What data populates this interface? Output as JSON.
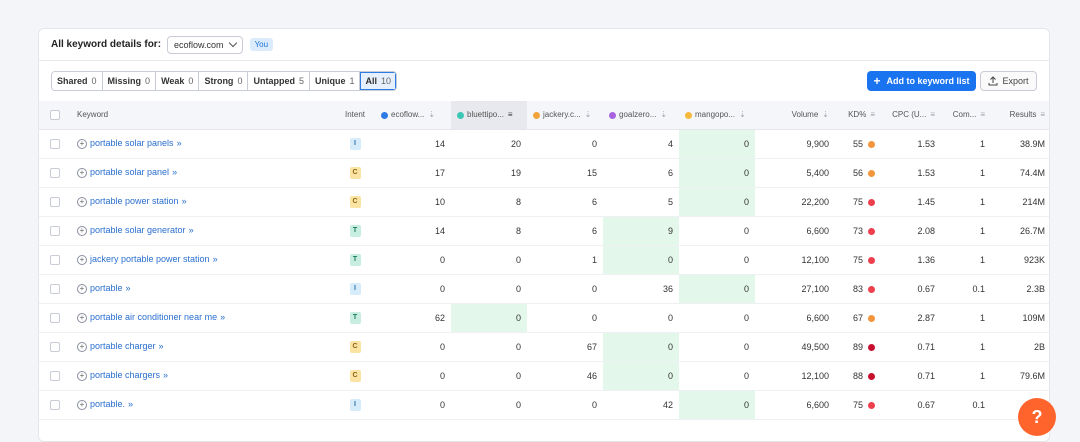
{
  "header": {
    "title": "All keyword details for:",
    "domain": "ecoflow.com",
    "you_badge": "You"
  },
  "filters": [
    {
      "label": "Shared",
      "count": "0"
    },
    {
      "label": "Missing",
      "count": "0"
    },
    {
      "label": "Weak",
      "count": "0"
    },
    {
      "label": "Strong",
      "count": "0"
    },
    {
      "label": "Untapped",
      "count": "5"
    },
    {
      "label": "Unique",
      "count": "1"
    },
    {
      "label": "All",
      "count": "10"
    }
  ],
  "actions": {
    "add_label": "Add to keyword list",
    "export_label": "Export"
  },
  "columns": {
    "keyword": "Keyword",
    "intent": "Intent",
    "c1": "ecoflow...",
    "c2": "bluettipo...",
    "c3": "jackery.c...",
    "c4": "goalzero...",
    "c5": "mangopo...",
    "volume": "Volume",
    "kd": "KD%",
    "cpc": "CPC (U...",
    "com": "Com...",
    "results": "Results"
  },
  "competitor_colors": [
    "#2d7be5",
    "#3cc6b3",
    "#f2a33a",
    "#a863e0",
    "#f6b93b"
  ],
  "intent_colors": {
    "I": {
      "bg": "#d6ecfb",
      "fg": "#2a6fa8"
    },
    "C": {
      "bg": "#fbe3a4",
      "fg": "#8a6410"
    },
    "T": {
      "bg": "#c7eee0",
      "fg": "#1c7a5a"
    }
  },
  "kd_colors": {
    "orange": "#f3953b",
    "red": "#ee3f4d",
    "darkred": "#c8102e"
  },
  "rows": [
    {
      "keyword": "portable solar panels",
      "intent": "I",
      "c1": "14",
      "c2": "20",
      "c3": "0",
      "c4": "4",
      "c5": "0",
      "volume": "9,900",
      "kd": "55",
      "kd_color": "orange",
      "cpc": "1.53",
      "com": "1",
      "results": "38.9M",
      "hl": [
        4
      ]
    },
    {
      "keyword": "portable solar panel",
      "intent": "C",
      "c1": "17",
      "c2": "19",
      "c3": "15",
      "c4": "6",
      "c5": "0",
      "volume": "5,400",
      "kd": "56",
      "kd_color": "orange",
      "cpc": "1.53",
      "com": "1",
      "results": "74.4M",
      "hl": [
        4
      ]
    },
    {
      "keyword": "portable power station",
      "intent": "C",
      "c1": "10",
      "c2": "8",
      "c3": "6",
      "c4": "5",
      "c5": "0",
      "volume": "22,200",
      "kd": "75",
      "kd_color": "red",
      "cpc": "1.45",
      "com": "1",
      "results": "214M",
      "hl": [
        4
      ]
    },
    {
      "keyword": "portable solar generator",
      "intent": "T",
      "c1": "14",
      "c2": "8",
      "c3": "6",
      "c4": "9",
      "c5": "0",
      "volume": "6,600",
      "kd": "73",
      "kd_color": "red",
      "cpc": "2.08",
      "com": "1",
      "results": "26.7M",
      "hl": [
        3
      ]
    },
    {
      "keyword": "jackery portable power station",
      "intent": "T",
      "c1": "0",
      "c2": "0",
      "c3": "1",
      "c4": "0",
      "c5": "0",
      "volume": "12,100",
      "kd": "75",
      "kd_color": "red",
      "cpc": "1.36",
      "com": "1",
      "results": "923K",
      "hl": [
        3
      ]
    },
    {
      "keyword": "portable",
      "intent": "I",
      "c1": "0",
      "c2": "0",
      "c3": "0",
      "c4": "36",
      "c5": "0",
      "volume": "27,100",
      "kd": "83",
      "kd_color": "red",
      "cpc": "0.67",
      "com": "0.1",
      "results": "2.3B",
      "hl": [
        4
      ]
    },
    {
      "keyword": "portable air conditioner near me",
      "intent": "T",
      "c1": "62",
      "c2": "0",
      "c3": "0",
      "c4": "0",
      "c5": "0",
      "volume": "6,600",
      "kd": "67",
      "kd_color": "orange",
      "cpc": "2.87",
      "com": "1",
      "results": "109M",
      "hl": [
        1
      ]
    },
    {
      "keyword": "portable charger",
      "intent": "C",
      "c1": "0",
      "c2": "0",
      "c3": "67",
      "c4": "0",
      "c5": "0",
      "volume": "49,500",
      "kd": "89",
      "kd_color": "darkred",
      "cpc": "0.71",
      "com": "1",
      "results": "2B",
      "hl": [
        3
      ]
    },
    {
      "keyword": "portable chargers",
      "intent": "C",
      "c1": "0",
      "c2": "0",
      "c3": "46",
      "c4": "0",
      "c5": "0",
      "volume": "12,100",
      "kd": "88",
      "kd_color": "darkred",
      "cpc": "0.71",
      "com": "1",
      "results": "79.6M",
      "hl": [
        3
      ]
    },
    {
      "keyword": "portable.",
      "intent": "I",
      "c1": "0",
      "c2": "0",
      "c3": "0",
      "c4": "42",
      "c5": "0",
      "volume": "6,600",
      "kd": "75",
      "kd_color": "red",
      "cpc": "0.67",
      "com": "0.1",
      "results": "",
      "hl": [
        4
      ]
    }
  ],
  "help": "?"
}
